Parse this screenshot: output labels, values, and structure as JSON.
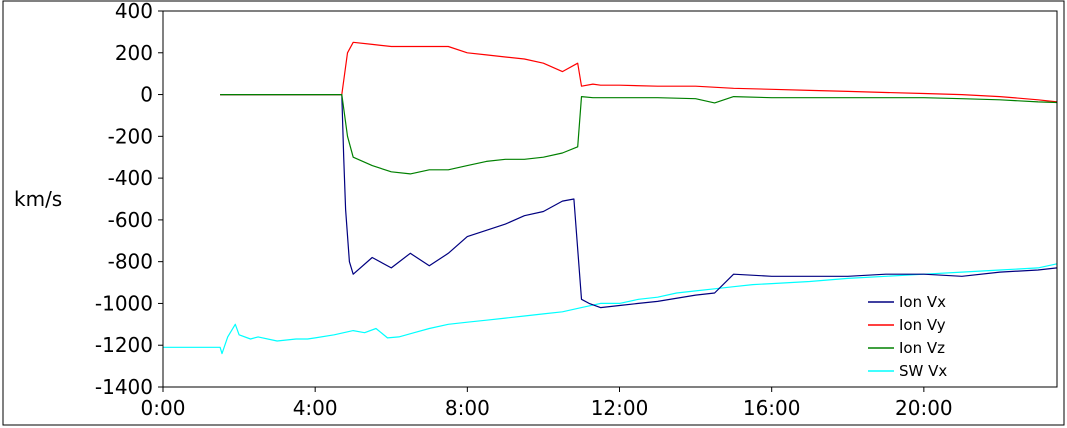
{
  "chart_data": {
    "type": "line",
    "title": "",
    "xlabel": "",
    "ylabel": "km/s",
    "xlim": [
      0,
      23.5
    ],
    "ylim": [
      -1400,
      400
    ],
    "x_ticks": [
      0,
      4,
      8,
      12,
      16,
      20
    ],
    "x_tick_labels": [
      "0:00",
      "4:00",
      "8:00",
      "12:00",
      "16:00",
      "20:00"
    ],
    "y_ticks": [
      400,
      200,
      0,
      -200,
      -400,
      -600,
      -800,
      -1000,
      -1200,
      -1400
    ],
    "y_tick_labels": [
      "400",
      "200",
      "0",
      "-200",
      "-400",
      "-600",
      "-800",
      "-1000",
      "-1200",
      "-1400"
    ],
    "grid": false,
    "legend_position": "bottom-right",
    "series": [
      {
        "name": "SW Vx",
        "color": "#00ffff",
        "x": [
          0,
          1.5,
          1.55,
          1.7,
          1.9,
          2.0,
          2.3,
          2.5,
          3.0,
          3.5,
          3.8,
          4.0,
          4.5,
          5.0,
          5.3,
          5.6,
          5.9,
          6.2,
          6.6,
          7.0,
          7.5,
          8.0,
          8.5,
          9.0,
          9.5,
          10.0,
          10.5,
          11.0,
          11.5,
          12.0,
          12.5,
          13.0,
          13.5,
          14.0,
          14.5,
          15.0,
          15.5,
          16.0,
          17.0,
          18.0,
          19.0,
          20.0,
          21.0,
          22.0,
          23.0,
          23.5
        ],
        "values": [
          -1210,
          -1210,
          -1240,
          -1160,
          -1100,
          -1150,
          -1170,
          -1160,
          -1180,
          -1170,
          -1170,
          -1165,
          -1150,
          -1130,
          -1140,
          -1120,
          -1165,
          -1160,
          -1140,
          -1120,
          -1100,
          -1090,
          -1080,
          -1070,
          -1060,
          -1050,
          -1040,
          -1020,
          -1000,
          -1000,
          -980,
          -970,
          -950,
          -940,
          -930,
          -920,
          -910,
          -905,
          -895,
          -880,
          -870,
          -860,
          -850,
          -840,
          -830,
          -810
        ]
      },
      {
        "name": "Ion Vx",
        "color": "#000080",
        "x": [
          1.5,
          2.3,
          4.7,
          4.75,
          4.8,
          4.9,
          5.0,
          5.5,
          6.0,
          6.5,
          7.0,
          7.5,
          8.0,
          8.5,
          9.0,
          9.5,
          10.0,
          10.5,
          10.8,
          11.0,
          11.2,
          11.5,
          12.0,
          12.5,
          13.0,
          14.0,
          14.5,
          15.0,
          16.0,
          17.0,
          18.0,
          19.0,
          20.0,
          21.0,
          22.0,
          23.0,
          23.5
        ],
        "values": [
          0,
          0,
          0,
          -300,
          -550,
          -800,
          -860,
          -780,
          -830,
          -760,
          -820,
          -760,
          -680,
          -650,
          -620,
          -580,
          -560,
          -510,
          -500,
          -980,
          -1000,
          -1020,
          -1010,
          -1000,
          -990,
          -960,
          -950,
          -860,
          -870,
          -870,
          -870,
          -860,
          -860,
          -870,
          -850,
          -840,
          -830
        ]
      },
      {
        "name": "Ion Vy",
        "color": "#ff0000",
        "x": [
          1.5,
          2.3,
          4.7,
          4.85,
          5.0,
          5.5,
          6.0,
          6.5,
          7.0,
          7.5,
          8.0,
          8.5,
          9.0,
          9.5,
          10.0,
          10.5,
          10.9,
          11.0,
          11.3,
          11.5,
          12.0,
          13.0,
          14.0,
          15.0,
          16.0,
          17.0,
          18.0,
          19.0,
          20.0,
          21.0,
          22.0,
          23.0,
          23.5
        ],
        "values": [
          0,
          0,
          0,
          200,
          250,
          240,
          230,
          230,
          230,
          230,
          200,
          190,
          180,
          170,
          150,
          110,
          150,
          40,
          50,
          45,
          45,
          40,
          40,
          30,
          25,
          20,
          15,
          10,
          5,
          0,
          -10,
          -25,
          -35
        ]
      },
      {
        "name": "Ion Vz",
        "color": "#008000",
        "x": [
          1.5,
          2.3,
          4.7,
          4.85,
          5.0,
          5.5,
          6.0,
          6.5,
          7.0,
          7.5,
          8.0,
          8.5,
          9.0,
          9.5,
          10.0,
          10.5,
          10.9,
          11.0,
          11.3,
          11.5,
          12.0,
          13.0,
          14.0,
          14.5,
          15.0,
          16.0,
          17.0,
          18.0,
          19.0,
          20.0,
          21.0,
          22.0,
          23.0,
          23.5
        ],
        "values": [
          0,
          0,
          0,
          -200,
          -300,
          -340,
          -370,
          -380,
          -360,
          -360,
          -340,
          -320,
          -310,
          -310,
          -300,
          -280,
          -250,
          -10,
          -15,
          -15,
          -15,
          -15,
          -20,
          -40,
          -10,
          -15,
          -15,
          -15,
          -15,
          -15,
          -20,
          -25,
          -35,
          -38
        ]
      }
    ]
  }
}
